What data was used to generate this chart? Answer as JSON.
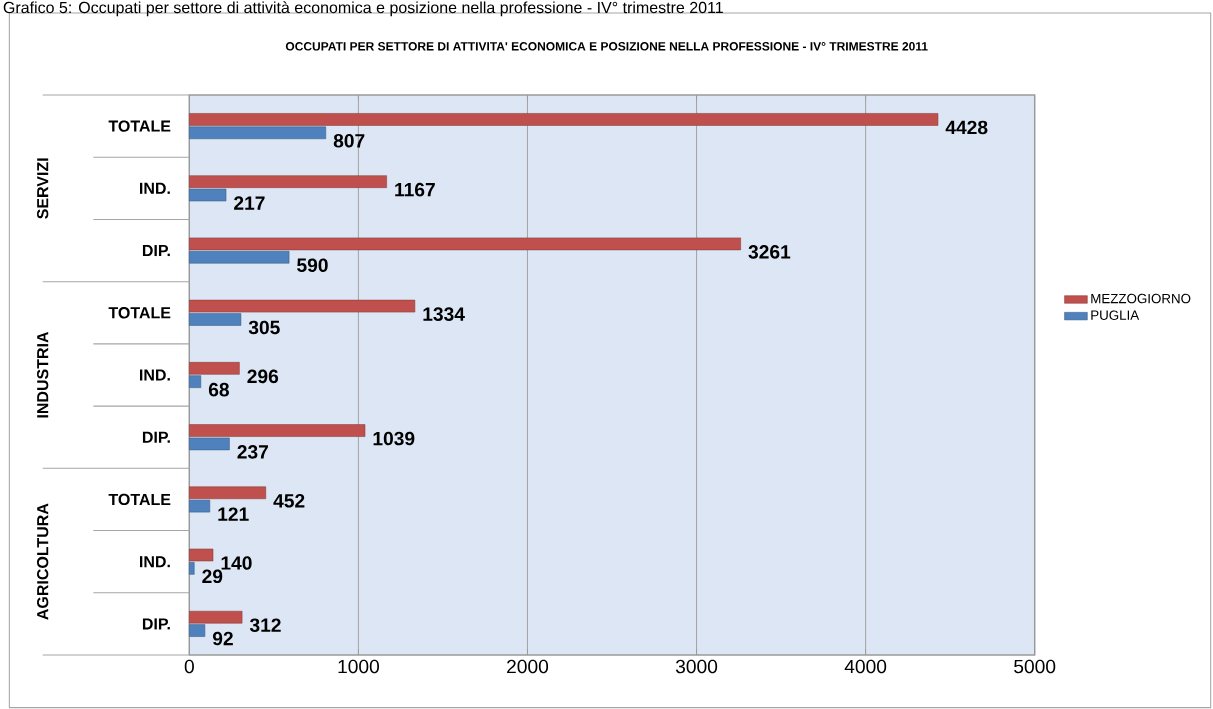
{
  "chart_data": {
    "type": "bar",
    "orientation": "horizontal",
    "title": "OCCUPATI PER SETTORE DI ATTIVITA' ECONOMICA E POSIZIONE NELLA PROFESSIONE - IV° TRIMESTRE 2011",
    "annotations": [
      "Grafico 5: Occupati per settore di attività economica e posizione nella professione - IV° trimestre 2011",
      "SERVIZI",
      "INDUSTRIA",
      "AGRICOLTURA"
    ],
    "categories": [
      "TOTALE",
      "IND.",
      "DIP.",
      "TOTALE",
      "IND.",
      "DIP.",
      "TOTALE",
      "IND.",
      "DIP."
    ],
    "series": [
      {
        "name": "MEZZOGIORNO",
        "color": "#c0504d",
        "values": [
          4428,
          1167,
          3261,
          1334,
          296,
          1039,
          452,
          140,
          312
        ]
      },
      {
        "name": "PUGLIA",
        "color": "#4f81bd",
        "values": [
          807,
          217,
          590,
          305,
          68,
          237,
          121,
          29,
          92
        ]
      }
    ],
    "xlim": [
      0,
      5000
    ],
    "xticks": [
      0,
      1000,
      2000,
      3000,
      4000,
      5000
    ],
    "grid": "x",
    "legend": "right",
    "data_labels": true
  }
}
